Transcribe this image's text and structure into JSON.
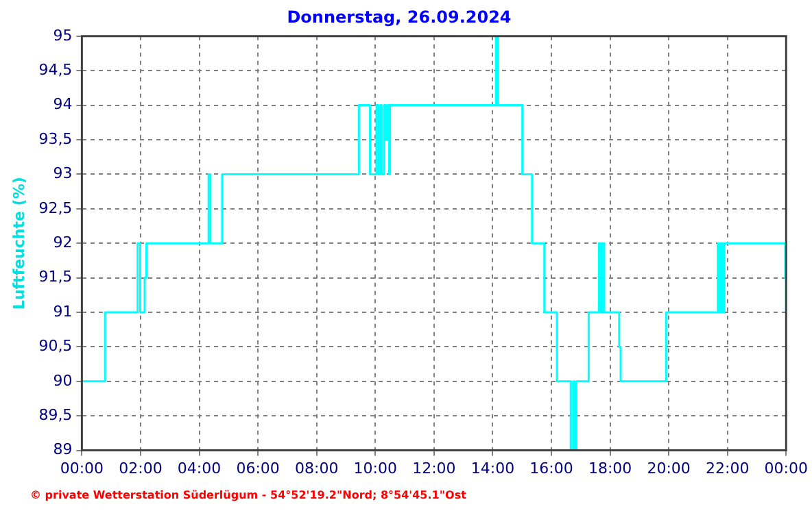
{
  "chart_data": {
    "type": "step",
    "title": "Donnerstag, 26.09.2024",
    "ylabel": "Luftfeuchte (%)",
    "annotations": [
      "© private Wetterstation Süderlügum - 54°52'19.2\"Nord; 8°54'45.1\"Ost"
    ],
    "x": [
      0,
      0.79,
      1.9,
      1.99,
      2.14,
      2.2,
      4.32,
      4.38,
      4.78,
      9.44,
      9.82,
      10.04,
      10.1,
      10.16,
      10.22,
      10.3,
      10.36,
      10.42,
      10.47,
      10.5,
      14.11,
      14.18,
      15.01,
      15.34,
      15.76,
      16.19,
      16.66,
      16.74,
      16.79,
      16.85,
      17.27,
      17.62,
      17.67,
      17.72,
      17.8,
      18.31,
      18.36,
      19.91,
      21.67,
      21.72,
      21.78,
      21.83,
      21.89,
      23.97,
      24
    ],
    "series": [
      {
        "color": "#00ffff",
        "values": [
          90,
          91,
          92,
          91,
          91.5,
          92,
          93,
          92,
          93,
          94,
          93,
          94,
          93,
          94,
          93,
          94,
          93.5,
          94,
          93,
          94,
          95,
          94,
          93,
          92,
          91,
          90,
          89,
          90,
          89,
          90,
          91,
          92,
          91,
          92,
          91,
          90.5,
          90,
          91,
          92,
          91,
          92,
          91,
          92,
          91.5,
          91
        ]
      }
    ],
    "xlim": [
      0,
      24
    ],
    "xticks": [
      {
        "value": 0,
        "label": "00:00"
      },
      {
        "value": 2,
        "label": "02:00"
      },
      {
        "value": 4,
        "label": "04:00"
      },
      {
        "value": 6,
        "label": "06:00"
      },
      {
        "value": 8,
        "label": "08:00"
      },
      {
        "value": 10,
        "label": "10:00"
      },
      {
        "value": 12,
        "label": "12:00"
      },
      {
        "value": 14,
        "label": "14:00"
      },
      {
        "value": 16,
        "label": "16:00"
      },
      {
        "value": 18,
        "label": "18:00"
      },
      {
        "value": 20,
        "label": "20:00"
      },
      {
        "value": 22,
        "label": "22:00"
      },
      {
        "value": 24,
        "label": "00:00"
      }
    ],
    "ylim": [
      89,
      95
    ],
    "yticks": [
      89,
      {
        "value": 89.5,
        "label": "89,5"
      },
      90,
      {
        "value": 90.5,
        "label": "90,5"
      },
      91,
      {
        "value": 91.5,
        "label": "91,5"
      },
      92,
      {
        "value": 92.5,
        "label": "92,5"
      },
      93,
      {
        "value": 93.5,
        "label": "93,5"
      },
      94,
      {
        "value": 94.5,
        "label": "94,5"
      },
      95
    ],
    "grid": true,
    "legend": false,
    "marker": "none",
    "line_style": "solid"
  }
}
